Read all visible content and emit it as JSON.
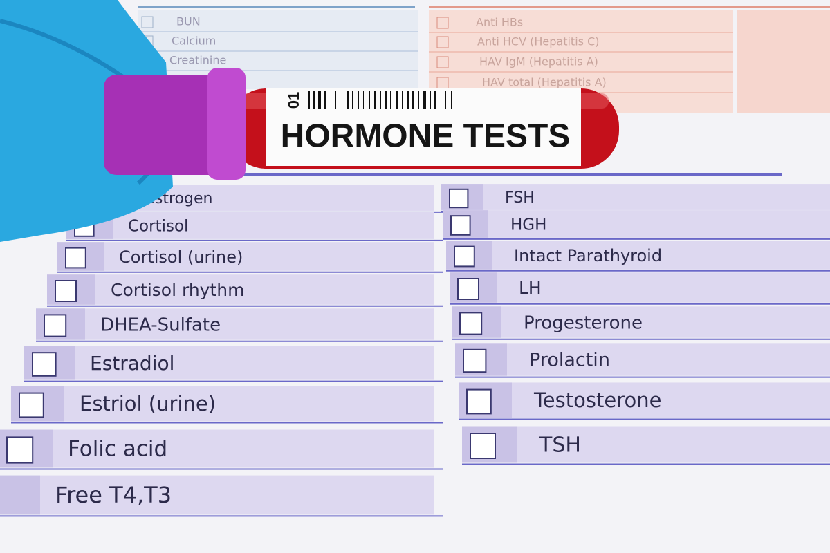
{
  "background_form": {
    "left_items": [
      "BUN",
      "Calcium",
      "Creatinine"
    ],
    "right_items": [
      "Anti HBs",
      "Anti HCV (Hepatitis C)",
      "HAV IgM (Hepatitis A)",
      "HAV total (Hepatitis A)"
    ]
  },
  "form": {
    "left_items": [
      "Estrogen",
      "Cortisol",
      "Cortisol (urine)",
      "Cortisol rhythm",
      "DHEA-Sulfate",
      "Estradiol",
      "Estriol (urine)",
      "Folic acid",
      "Free T4,T3"
    ],
    "right_items": [
      "FSH",
      "HGH",
      "Intact Parathyroid",
      "LH",
      "Progesterone",
      "Prolactin",
      "Testosterone",
      "TSH"
    ]
  },
  "tube_label": {
    "code": "01",
    "title": "HORMONE TESTS"
  }
}
